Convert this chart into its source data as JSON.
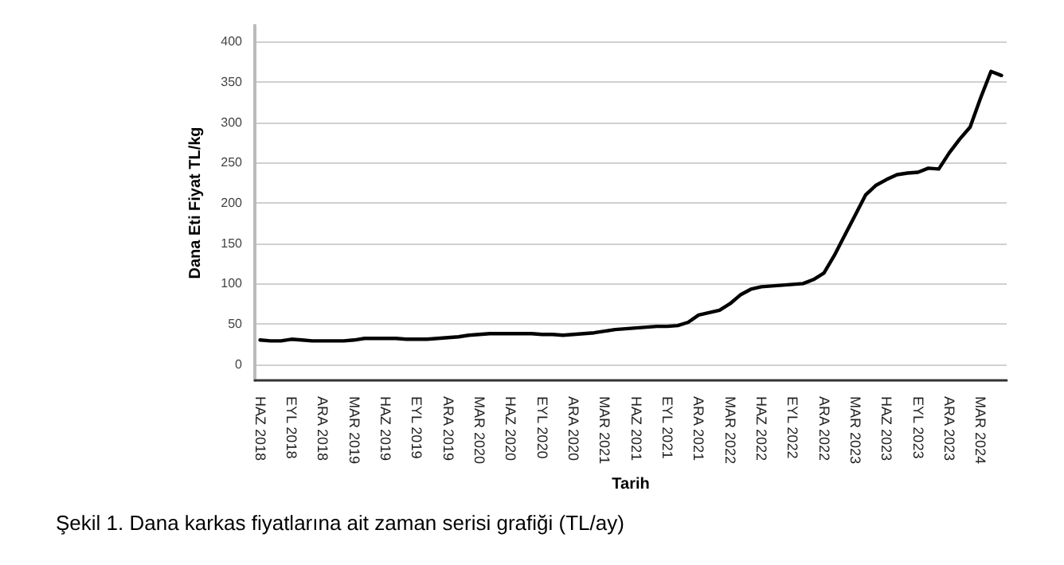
{
  "chart_data": {
    "type": "line",
    "xlabel": "Tarih",
    "ylabel": "Dana Eti Fiyat TL/kg",
    "annotations": [
      "Şekil 1. Dana karkas fiyatlarına ait zaman serisi grafiği (TL/ay)"
    ],
    "categories": [
      "HAZ 2018",
      null,
      null,
      "EYL 2018",
      null,
      null,
      "ARA 2018",
      null,
      null,
      "MAR 2019",
      null,
      null,
      "HAZ 2019",
      null,
      null,
      "EYL 2019",
      null,
      null,
      "ARA 2019",
      null,
      null,
      "MAR 2020",
      null,
      null,
      "HAZ 2020",
      null,
      null,
      "EYL 2020",
      null,
      null,
      "ARA 2020",
      null,
      null,
      "MAR 2021",
      null,
      null,
      "HAZ 2021",
      null,
      null,
      "EYL 2021",
      null,
      null,
      "ARA 2021",
      null,
      null,
      "MAR 2022",
      null,
      null,
      "HAZ 2022",
      null,
      null,
      "EYL 2022",
      null,
      null,
      "ARA 2022",
      null,
      null,
      "MAR 2023",
      null,
      null,
      "HAZ 2023",
      null,
      null,
      "EYL 2023",
      null,
      null,
      "ARA 2023",
      null,
      null,
      "MAR 2024",
      null,
      null
    ],
    "series": [
      {
        "color": "#000000",
        "values": [
          30,
          29,
          29,
          31,
          30,
          29,
          29,
          29,
          29,
          30,
          32,
          32,
          32,
          32,
          31,
          31,
          31,
          32,
          33,
          34,
          36,
          37,
          38,
          38,
          38,
          38,
          38,
          37,
          37,
          36,
          37,
          38,
          39,
          41,
          43,
          44,
          45,
          46,
          47,
          47,
          48,
          52,
          61,
          64,
          67,
          75,
          86,
          93,
          96,
          97,
          98,
          99,
          100,
          105,
          113,
          135,
          160,
          185,
          210,
          222,
          229,
          235,
          237,
          238,
          243,
          242,
          262,
          279,
          294,
          330,
          363,
          358
        ]
      }
    ],
    "ylim": [
      -20,
      420
    ],
    "yticks": [
      0,
      50,
      100,
      150,
      200,
      250,
      300,
      350,
      400
    ],
    "grid": "y",
    "marker": "none",
    "line_style": "solid"
  }
}
